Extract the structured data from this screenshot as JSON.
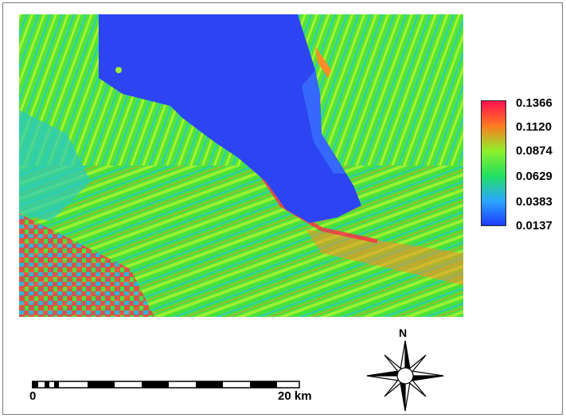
{
  "legend": {
    "labels": [
      "0.1366",
      "0.1120",
      "0.0874",
      "0.0629",
      "0.0383",
      "0.0137"
    ],
    "colors": [
      "#ff1050",
      "#ff7a20",
      "#8cf02a",
      "#22e060",
      "#2aa8ff",
      "#1f3cff"
    ]
  },
  "scale_bar": {
    "start_label": "0",
    "end_label": "20 km"
  },
  "north_arrow": {
    "label": "N"
  },
  "map_colors": {
    "lake": "#2c44f2",
    "land_green": "#3fe03c",
    "land_lime": "#9cf030",
    "land_cyan": "#2ccbc0",
    "hot_red": "#ff2a4a",
    "orange": "#ff8c28"
  }
}
